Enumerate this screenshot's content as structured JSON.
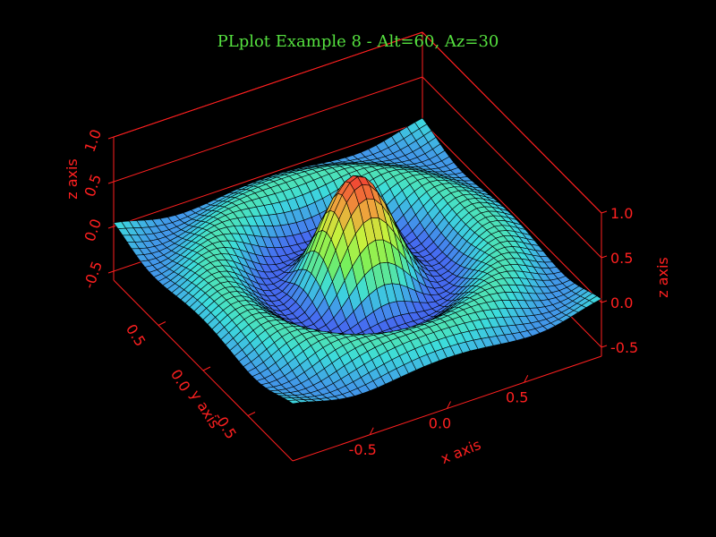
{
  "chart_data": {
    "type": "surface",
    "title": "PLplot Example 8 - Alt=60, Az=30",
    "function": "z = sin(pi*r)/(pi*r) scaled, r = radial distance (sombrero)",
    "x_axis": {
      "label": "x axis",
      "ticks": [
        "-0.5",
        "0.0",
        "0.5"
      ],
      "range": [
        -1,
        1
      ]
    },
    "y_axis": {
      "label": "y axis",
      "ticks": [
        "-0.5",
        "0.0",
        "0.5"
      ],
      "range": [
        -1,
        1
      ]
    },
    "z_axis": {
      "label": "z axis",
      "ticks": [
        "-0.5",
        "0.0",
        "0.5",
        "1.0"
      ],
      "range": [
        -0.6,
        1.0
      ]
    },
    "altitude_deg": 60,
    "azimuth_deg": 30,
    "grid_lines": 40,
    "colors": {
      "background": "#000000",
      "title": "#55e03f",
      "axes": "#ff2020",
      "mesh_line": "#000000"
    }
  }
}
